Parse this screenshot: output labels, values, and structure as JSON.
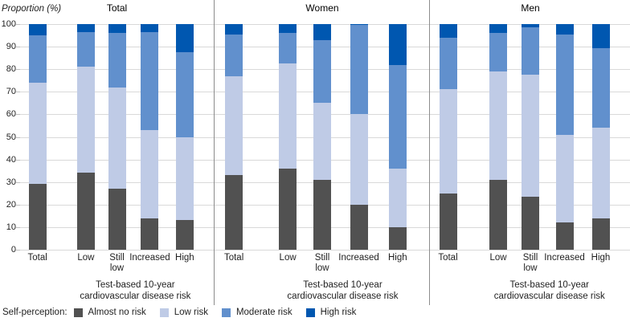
{
  "chart_data": {
    "type": "bar",
    "stacked": true,
    "ylabel": "Proportion (%)",
    "ylim": [
      0,
      100
    ],
    "yticks": [
      0,
      10,
      20,
      30,
      40,
      50,
      60,
      70,
      80,
      90,
      100
    ],
    "grid": true,
    "categories": [
      "Total",
      "Low",
      "Still low",
      "Increased",
      "High"
    ],
    "category_lines": [
      [
        "Total"
      ],
      [
        "Low"
      ],
      [
        "Still",
        "low"
      ],
      [
        "Increased"
      ],
      [
        "High"
      ]
    ],
    "xcaption_lines": [
      "Test-based 10-year",
      "cardiovascular disease risk"
    ],
    "legend_label": "Self-perception:",
    "legend_position": "bottom-left",
    "series_meta": [
      {
        "key": "almost",
        "name": "Almost no risk",
        "color": "#515151"
      },
      {
        "key": "low",
        "name": "Low risk",
        "color": "#bfcbe6"
      },
      {
        "key": "moderate",
        "name": "Moderate risk",
        "color": "#6190cd"
      },
      {
        "key": "high",
        "name": "High risk",
        "color": "#0057b0"
      }
    ],
    "panels": [
      {
        "title": "Total",
        "series": {
          "almost": [
            29,
            34,
            27,
            14,
            13
          ],
          "low": [
            45,
            47,
            45,
            39,
            37
          ],
          "moderate": [
            21,
            15.5,
            24,
            43.5,
            37.5
          ],
          "high": [
            5,
            3.5,
            4,
            3.5,
            12.5
          ]
        }
      },
      {
        "title": "Women",
        "series": {
          "almost": [
            33,
            36,
            31,
            20,
            10
          ],
          "low": [
            44,
            46.5,
            34,
            40,
            26
          ],
          "moderate": [
            18.5,
            13.5,
            28,
            39.5,
            46
          ],
          "high": [
            4.5,
            4,
            7,
            0.5,
            18
          ]
        }
      },
      {
        "title": "Men",
        "series": {
          "almost": [
            25,
            31,
            23.5,
            12,
            14
          ],
          "low": [
            46,
            48,
            54,
            39,
            40
          ],
          "moderate": [
            23,
            17,
            21,
            44.5,
            35.5
          ],
          "high": [
            6,
            4,
            1.5,
            4.5,
            10.5
          ]
        }
      }
    ],
    "colors": {
      "almost_no_risk": "#515151",
      "low_risk": "#bfcbe6",
      "moderate_risk": "#6190cd",
      "high_risk": "#0057b0",
      "gridline": "#d9d9d9",
      "panel_separator": "#8c8c8c"
    }
  }
}
